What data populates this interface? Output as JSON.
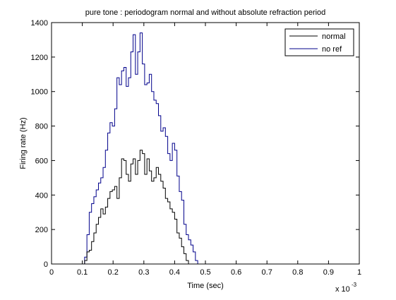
{
  "chart_data": {
    "type": "line",
    "title": "pure tone : periodogram normal and without absolute refraction period",
    "xlabel": "Time (sec)",
    "ylabel": "Firing rate (Hz)",
    "x_exponent_base": "x 10",
    "x_exponent_power": "-3",
    "xlim": [
      0,
      1
    ],
    "ylim": [
      0,
      1400
    ],
    "xticks": [
      "0",
      "0.1",
      "0.2",
      "0.3",
      "0.4",
      "0.5",
      "0.6",
      "0.7",
      "0.8",
      "0.9",
      "1"
    ],
    "yticks": [
      "0",
      "200",
      "400",
      "600",
      "800",
      "1000",
      "1200",
      "1400"
    ],
    "grid": false,
    "legend_position": "top-right",
    "bin_width": 0.0075,
    "series": [
      {
        "name": "normal",
        "color": "#000000",
        "x": [
          0.1,
          0.1075,
          0.115,
          0.1225,
          0.13,
          0.1375,
          0.145,
          0.1525,
          0.16,
          0.1675,
          0.175,
          0.1825,
          0.19,
          0.1975,
          0.205,
          0.2125,
          0.22,
          0.2275,
          0.235,
          0.2425,
          0.25,
          0.2575,
          0.265,
          0.2725,
          0.28,
          0.2875,
          0.295,
          0.3025,
          0.31,
          0.3175,
          0.325,
          0.3325,
          0.34,
          0.3475,
          0.355,
          0.3625,
          0.37,
          0.3775,
          0.385,
          0.3925,
          0.4,
          0.4075,
          0.415,
          0.4225,
          0.43,
          0.4375,
          0.445,
          0.4525,
          0.46,
          0.4675,
          0.475,
          0.4825,
          0.49,
          0.4975
        ],
        "values": [
          0,
          20,
          70,
          80,
          130,
          180,
          230,
          270,
          320,
          290,
          330,
          380,
          420,
          430,
          450,
          380,
          500,
          610,
          600,
          520,
          480,
          580,
          610,
          520,
          600,
          660,
          640,
          520,
          610,
          540,
          480,
          500,
          560,
          520,
          480,
          440,
          380,
          360,
          320,
          300,
          260,
          180,
          150,
          100,
          60,
          20,
          0,
          0,
          0,
          0,
          0,
          0,
          0,
          0
        ]
      },
      {
        "name": "no ref",
        "color": "#00008b",
        "x": [
          0.1,
          0.1075,
          0.115,
          0.1225,
          0.13,
          0.1375,
          0.145,
          0.1525,
          0.16,
          0.1675,
          0.175,
          0.1825,
          0.19,
          0.1975,
          0.205,
          0.2125,
          0.22,
          0.2275,
          0.235,
          0.2425,
          0.25,
          0.2575,
          0.265,
          0.2725,
          0.28,
          0.2875,
          0.295,
          0.3025,
          0.31,
          0.3175,
          0.325,
          0.3325,
          0.34,
          0.3475,
          0.355,
          0.3625,
          0.37,
          0.3775,
          0.385,
          0.3925,
          0.4,
          0.4075,
          0.415,
          0.4225,
          0.43,
          0.4375,
          0.445,
          0.4525,
          0.46,
          0.4675,
          0.475,
          0.4825,
          0.49,
          0.4975
        ],
        "values": [
          0,
          40,
          170,
          300,
          350,
          390,
          430,
          470,
          500,
          560,
          660,
          760,
          820,
          800,
          900,
          1080,
          1040,
          1120,
          1140,
          1030,
          1080,
          1230,
          1330,
          1100,
          1230,
          1340,
          1160,
          1040,
          1050,
          1100,
          1000,
          950,
          930,
          860,
          770,
          790,
          740,
          640,
          600,
          700,
          660,
          510,
          420,
          370,
          230,
          170,
          140,
          110,
          70,
          20,
          0,
          0,
          0,
          0
        ]
      }
    ]
  }
}
